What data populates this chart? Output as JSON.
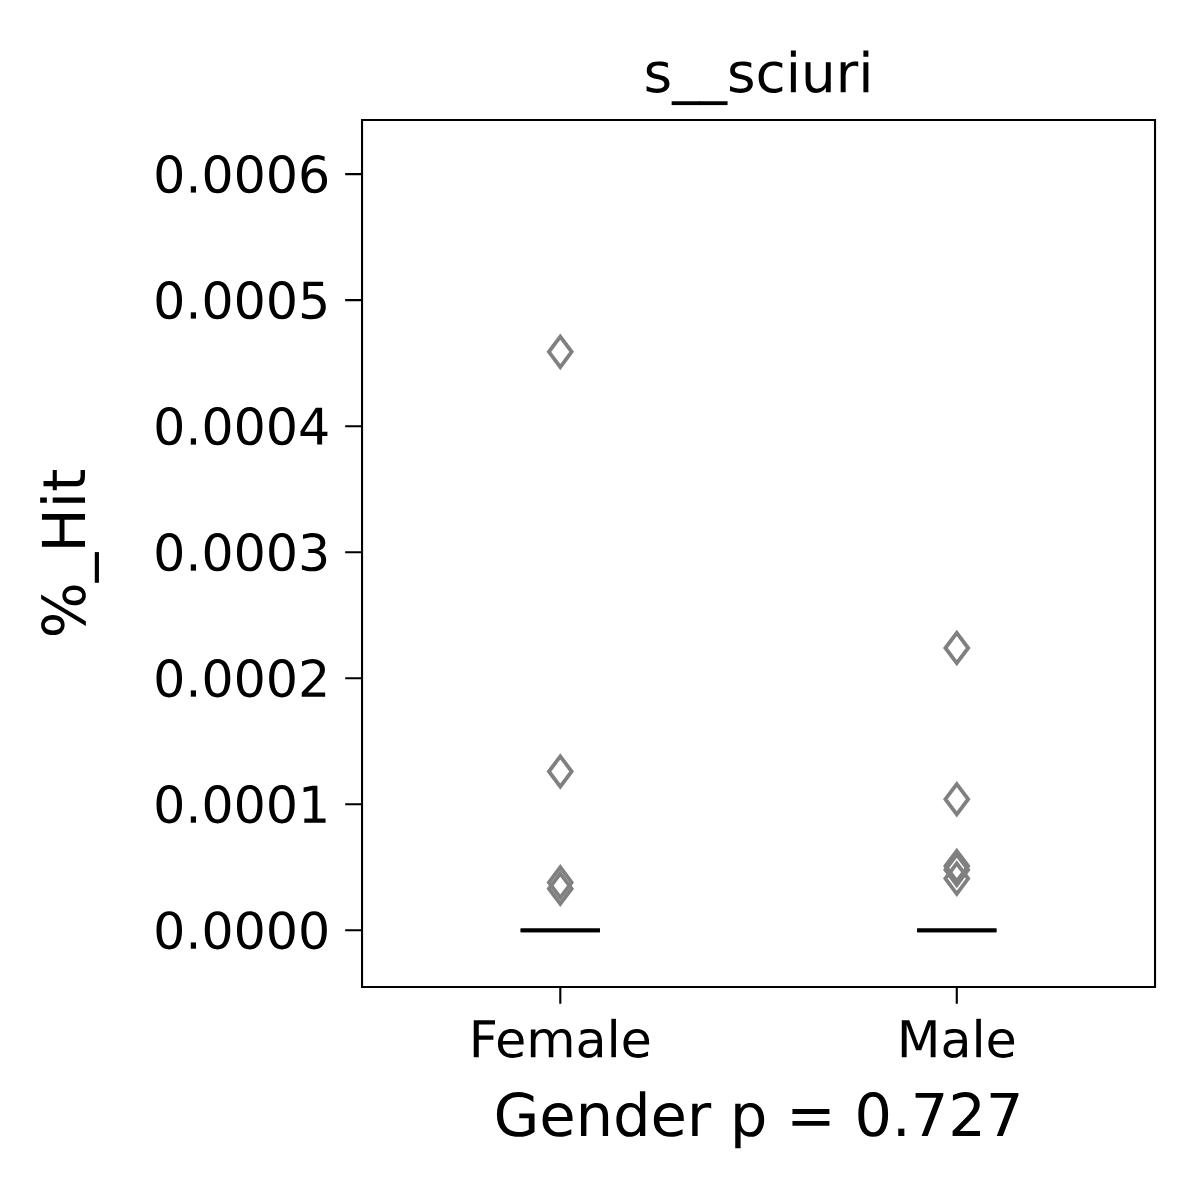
{
  "chart_data": {
    "type": "box",
    "title": "s__sciuri",
    "xlabel": "Gender p = 0.727",
    "ylabel": "%_Hit",
    "categories": [
      "Female",
      "Male"
    ],
    "boxes": [
      {
        "low": 0,
        "q1": 0,
        "median": 0,
        "q3": 0,
        "high": 0
      },
      {
        "low": 0,
        "q1": 0,
        "median": 0,
        "q3": 0,
        "high": 0
      }
    ],
    "series": [
      {
        "type": "scatter",
        "color": "#808080",
        "x": [
          "Female",
          "Female",
          "Female",
          "Female",
          "Male",
          "Male",
          "Male",
          "Male",
          "Male"
        ],
        "values": [
          0.000459,
          0.000126,
          3.8e-05,
          3.3e-05,
          0.000224,
          0.000104,
          5.1e-05,
          4.8e-05,
          4.1e-05
        ]
      }
    ],
    "ylim": [
      -4.5e-05,
      0.000643
    ],
    "yticks": [
      {
        "value": 0,
        "label": "0.0000"
      },
      0.0001,
      0.0002,
      0.0003,
      0.0004,
      0.0005,
      0.0006
    ],
    "marker": "diamond",
    "grid": false
  }
}
